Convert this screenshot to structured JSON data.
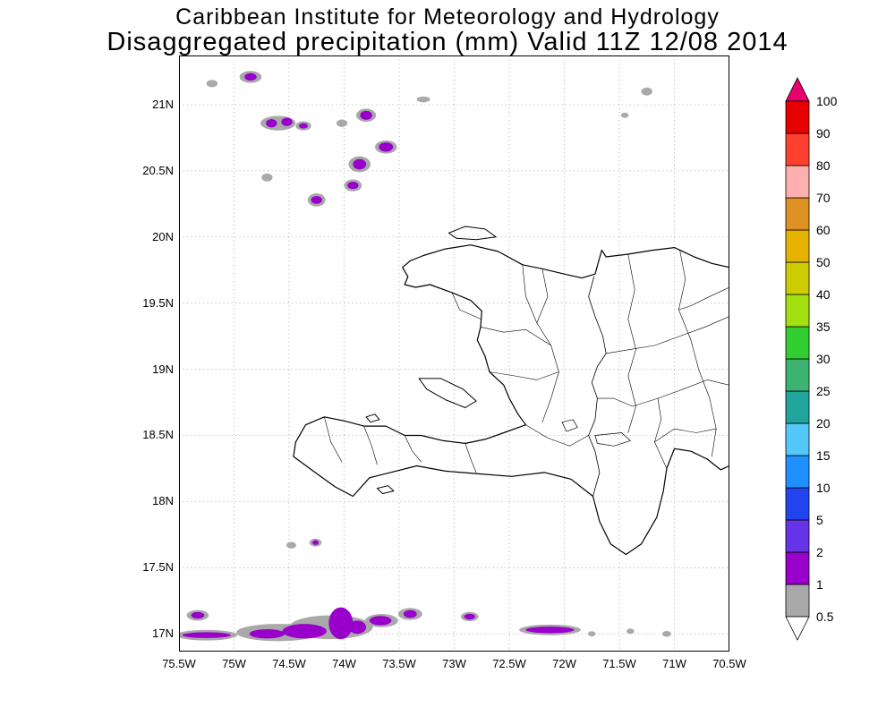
{
  "chart_data": {
    "type": "heatmap",
    "title": "Caribbean Institute for Meteorology and Hydrology",
    "subtitle": "Disaggregated precipitation (mm) Valid 11Z 12/08 2014",
    "x_axis": {
      "ticks": [
        "75.5W",
        "75W",
        "74.5W",
        "74W",
        "73.5W",
        "73W",
        "72.5W",
        "72W",
        "71.5W",
        "71W",
        "70.5W"
      ],
      "values": [
        -75.5,
        -75,
        -74.5,
        -74,
        -73.5,
        -73,
        -72.5,
        -72,
        -71.5,
        -71,
        -70.5
      ],
      "range": [
        -75.5,
        -70.5
      ]
    },
    "y_axis": {
      "ticks": [
        "21N",
        "20.5N",
        "20N",
        "19.5N",
        "19N",
        "18.5N",
        "18N",
        "17.5N",
        "17N"
      ],
      "values": [
        21,
        20.5,
        20,
        19.5,
        19,
        18.5,
        18,
        17.5,
        17
      ],
      "range": [
        16.866,
        21.372
      ]
    },
    "grid": true,
    "colorbar": {
      "unit": "mm",
      "levels": [
        0.5,
        1,
        2,
        5,
        10,
        15,
        20,
        25,
        30,
        35,
        40,
        50,
        60,
        70,
        80,
        90,
        100
      ],
      "range_colors": [
        "#A9A9A9",
        "#9900CC",
        "#6633E6",
        "#2244EE",
        "#1E90FF",
        "#55C8FA",
        "#20A49C",
        "#3CB371",
        "#32CD32",
        "#A2E010",
        "#CCCC00",
        "#E6B400",
        "#DF9023",
        "#FFAFAF",
        "#FF4030",
        "#E60000"
      ],
      "above_color": "#E8006E",
      "below_color": "#FFFFFF"
    },
    "precip": {
      "level_colors": {
        "0.5-1": "#A9A9A9",
        "1-2": "#9900CC"
      },
      "blobs_gray": [
        [
          -75.2,
          21.16,
          0.05,
          0.028
        ],
        [
          -74.85,
          21.21,
          0.1,
          0.045
        ],
        [
          -74.6,
          20.86,
          0.16,
          0.055
        ],
        [
          -74.37,
          20.84,
          0.07,
          0.035
        ],
        [
          -74.02,
          20.86,
          0.05,
          0.028
        ],
        [
          -73.8,
          20.92,
          0.09,
          0.05
        ],
        [
          -73.62,
          20.68,
          0.1,
          0.05
        ],
        [
          -73.86,
          20.55,
          0.1,
          0.06
        ],
        [
          -73.92,
          20.39,
          0.08,
          0.045
        ],
        [
          -74.25,
          20.28,
          0.08,
          0.05
        ],
        [
          -74.7,
          20.45,
          0.05,
          0.03
        ],
        [
          -73.28,
          21.04,
          0.06,
          0.022
        ],
        [
          -71.25,
          21.1,
          0.05,
          0.03
        ],
        [
          -71.45,
          20.92,
          0.035,
          0.02
        ],
        [
          -74.48,
          17.67,
          0.045,
          0.025
        ],
        [
          -74.26,
          17.69,
          0.055,
          0.03
        ],
        [
          -75.33,
          17.14,
          0.1,
          0.04
        ],
        [
          -75.25,
          16.99,
          0.28,
          0.04
        ],
        [
          -74.6,
          17.01,
          0.38,
          0.065
        ],
        [
          -74.12,
          17.05,
          0.38,
          0.09
        ],
        [
          -73.66,
          17.1,
          0.15,
          0.05
        ],
        [
          -73.4,
          17.15,
          0.11,
          0.045
        ],
        [
          -72.86,
          17.13,
          0.08,
          0.035
        ],
        [
          -72.13,
          17.03,
          0.28,
          0.04
        ],
        [
          -71.75,
          17.0,
          0.035,
          0.02
        ],
        [
          -71.4,
          17.02,
          0.035,
          0.02
        ],
        [
          -71.07,
          17.0,
          0.04,
          0.022
        ]
      ],
      "blobs_purple": [
        [
          -74.85,
          21.21,
          0.055,
          0.028
        ],
        [
          -74.66,
          20.86,
          0.05,
          0.032
        ],
        [
          -74.52,
          20.87,
          0.05,
          0.032
        ],
        [
          -74.37,
          20.84,
          0.04,
          0.02
        ],
        [
          -73.8,
          20.92,
          0.055,
          0.034
        ],
        [
          -73.62,
          20.68,
          0.065,
          0.035
        ],
        [
          -73.86,
          20.55,
          0.06,
          0.04
        ],
        [
          -73.92,
          20.39,
          0.05,
          0.028
        ],
        [
          -74.25,
          20.28,
          0.05,
          0.03
        ],
        [
          -74.26,
          17.69,
          0.028,
          0.018
        ],
        [
          -75.33,
          17.14,
          0.06,
          0.025
        ],
        [
          -75.25,
          16.99,
          0.22,
          0.022
        ],
        [
          -74.7,
          17.0,
          0.16,
          0.035
        ],
        [
          -74.36,
          17.02,
          0.2,
          0.055
        ],
        [
          -74.03,
          17.08,
          0.11,
          0.12
        ],
        [
          -73.88,
          17.05,
          0.08,
          0.05
        ],
        [
          -73.67,
          17.1,
          0.1,
          0.035
        ],
        [
          -73.4,
          17.15,
          0.06,
          0.03
        ],
        [
          -72.86,
          17.13,
          0.05,
          0.022
        ],
        [
          -72.13,
          17.03,
          0.22,
          0.025
        ]
      ]
    },
    "geo": {
      "mainland": [
        [
          -70.5,
          19.77
        ],
        [
          -70.66,
          19.8
        ],
        [
          -70.82,
          19.85
        ],
        [
          -71.0,
          19.92
        ],
        [
          -71.2,
          19.9
        ],
        [
          -71.42,
          19.87
        ],
        [
          -71.62,
          19.85
        ],
        [
          -71.66,
          19.9
        ],
        [
          -71.72,
          19.72
        ],
        [
          -71.84,
          19.69
        ],
        [
          -72.0,
          19.72
        ],
        [
          -72.2,
          19.76
        ],
        [
          -72.38,
          19.79
        ],
        [
          -72.6,
          19.89
        ],
        [
          -72.85,
          19.94
        ],
        [
          -73.08,
          19.91
        ],
        [
          -73.28,
          19.86
        ],
        [
          -73.4,
          19.82
        ],
        [
          -73.47,
          19.77
        ],
        [
          -73.42,
          19.7
        ],
        [
          -73.45,
          19.64
        ],
        [
          -73.35,
          19.62
        ],
        [
          -73.22,
          19.64
        ],
        [
          -73.02,
          19.58
        ],
        [
          -72.85,
          19.52
        ],
        [
          -72.75,
          19.44
        ],
        [
          -72.76,
          19.32
        ],
        [
          -72.79,
          19.22
        ],
        [
          -72.72,
          19.1
        ],
        [
          -72.68,
          18.98
        ],
        [
          -72.55,
          18.88
        ],
        [
          -72.5,
          18.78
        ],
        [
          -72.42,
          18.66
        ],
        [
          -72.35,
          18.58
        ],
        [
          -72.55,
          18.52
        ],
        [
          -72.72,
          18.47
        ],
        [
          -72.9,
          18.44
        ],
        [
          -73.1,
          18.46
        ],
        [
          -73.3,
          18.5
        ],
        [
          -73.45,
          18.5
        ],
        [
          -73.62,
          18.57
        ],
        [
          -73.82,
          18.57
        ],
        [
          -74.0,
          18.61
        ],
        [
          -74.18,
          18.64
        ],
        [
          -74.35,
          18.58
        ],
        [
          -74.44,
          18.45
        ],
        [
          -74.46,
          18.34
        ],
        [
          -74.28,
          18.23
        ],
        [
          -74.08,
          18.11
        ],
        [
          -73.92,
          18.04
        ],
        [
          -73.77,
          18.18
        ],
        [
          -73.58,
          18.22
        ],
        [
          -73.34,
          18.27
        ],
        [
          -73.08,
          18.23
        ],
        [
          -72.78,
          18.21
        ],
        [
          -72.48,
          18.19
        ],
        [
          -72.18,
          18.22
        ],
        [
          -71.94,
          18.17
        ],
        [
          -71.74,
          18.04
        ],
        [
          -71.68,
          17.85
        ],
        [
          -71.58,
          17.68
        ],
        [
          -71.44,
          17.6
        ],
        [
          -71.3,
          17.68
        ],
        [
          -71.16,
          17.88
        ],
        [
          -71.1,
          18.08
        ],
        [
          -71.07,
          18.25
        ],
        [
          -71.0,
          18.4
        ],
        [
          -70.85,
          18.38
        ],
        [
          -70.7,
          18.32
        ],
        [
          -70.58,
          18.24
        ],
        [
          -70.5,
          18.27
        ]
      ],
      "islands": [
        [
          [
            -73.05,
            20.03
          ],
          [
            -72.9,
            20.08
          ],
          [
            -72.72,
            20.06
          ],
          [
            -72.62,
            20.0
          ],
          [
            -72.8,
            19.98
          ],
          [
            -72.98,
            19.99
          ]
        ],
        [
          [
            -73.32,
            18.93
          ],
          [
            -73.12,
            18.93
          ],
          [
            -72.92,
            18.85
          ],
          [
            -72.8,
            18.76
          ],
          [
            -72.9,
            18.71
          ],
          [
            -73.08,
            18.77
          ],
          [
            -73.25,
            18.85
          ]
        ],
        [
          [
            -73.8,
            18.64
          ],
          [
            -73.72,
            18.66
          ],
          [
            -73.68,
            18.62
          ],
          [
            -73.76,
            18.6
          ]
        ],
        [
          [
            -73.7,
            18.1
          ],
          [
            -73.6,
            18.12
          ],
          [
            -73.55,
            18.08
          ],
          [
            -73.65,
            18.06
          ]
        ]
      ],
      "lakes": [
        [
          [
            -71.72,
            18.5
          ],
          [
            -71.48,
            18.52
          ],
          [
            -71.4,
            18.46
          ],
          [
            -71.55,
            18.42
          ],
          [
            -71.7,
            18.44
          ]
        ],
        [
          [
            -72.02,
            18.6
          ],
          [
            -71.92,
            18.62
          ],
          [
            -71.88,
            18.56
          ],
          [
            -71.98,
            18.53
          ]
        ]
      ],
      "border": [
        [
          -71.73,
          19.7
        ],
        [
          -71.78,
          19.55
        ],
        [
          -71.72,
          19.4
        ],
        [
          -71.65,
          19.25
        ],
        [
          -71.62,
          19.12
        ],
        [
          -71.7,
          19.02
        ],
        [
          -71.75,
          18.9
        ],
        [
          -71.7,
          18.78
        ],
        [
          -71.72,
          18.62
        ],
        [
          -71.78,
          18.5
        ],
        [
          -71.72,
          18.38
        ],
        [
          -71.68,
          18.22
        ],
        [
          -71.74,
          18.04
        ]
      ],
      "interior": [
        [
          [
            -70.95,
            19.9
          ],
          [
            -70.9,
            19.68
          ],
          [
            -70.96,
            19.45
          ],
          [
            -70.85,
            19.22
          ],
          [
            -70.78,
            19.0
          ],
          [
            -70.68,
            18.78
          ],
          [
            -70.62,
            18.55
          ],
          [
            -70.66,
            18.34
          ]
        ],
        [
          [
            -71.42,
            19.87
          ],
          [
            -71.36,
            19.6
          ],
          [
            -71.42,
            19.38
          ],
          [
            -71.35,
            19.15
          ],
          [
            -71.42,
            18.95
          ],
          [
            -71.35,
            18.72
          ],
          [
            -71.42,
            18.52
          ]
        ],
        [
          [
            -70.5,
            19.4
          ],
          [
            -70.72,
            19.32
          ],
          [
            -70.95,
            19.25
          ],
          [
            -71.18,
            19.18
          ],
          [
            -71.4,
            19.15
          ],
          [
            -71.62,
            19.12
          ]
        ],
        [
          [
            -70.5,
            18.88
          ],
          [
            -70.7,
            18.92
          ],
          [
            -70.92,
            18.85
          ],
          [
            -71.15,
            18.78
          ],
          [
            -71.38,
            18.72
          ],
          [
            -71.55,
            18.78
          ],
          [
            -71.7,
            18.78
          ]
        ],
        [
          [
            -71.07,
            18.25
          ],
          [
            -71.18,
            18.45
          ],
          [
            -71.12,
            18.62
          ],
          [
            -71.15,
            18.78
          ]
        ],
        [
          [
            -70.5,
            19.62
          ],
          [
            -70.68,
            19.55
          ],
          [
            -70.85,
            19.48
          ],
          [
            -70.96,
            19.45
          ]
        ],
        [
          [
            -70.62,
            18.55
          ],
          [
            -70.8,
            18.52
          ],
          [
            -71.0,
            18.55
          ],
          [
            -71.18,
            18.45
          ]
        ],
        [
          [
            -72.38,
            19.79
          ],
          [
            -72.35,
            19.55
          ],
          [
            -72.25,
            19.35
          ],
          [
            -72.12,
            19.18
          ],
          [
            -72.05,
            18.98
          ],
          [
            -72.12,
            18.78
          ],
          [
            -72.2,
            18.6
          ]
        ],
        [
          [
            -72.76,
            19.32
          ],
          [
            -72.55,
            19.28
          ],
          [
            -72.35,
            19.3
          ],
          [
            -72.12,
            19.18
          ]
        ],
        [
          [
            -72.68,
            18.98
          ],
          [
            -72.45,
            18.95
          ],
          [
            -72.25,
            18.92
          ],
          [
            -72.05,
            18.98
          ]
        ],
        [
          [
            -72.35,
            18.58
          ],
          [
            -72.15,
            18.48
          ],
          [
            -71.95,
            18.42
          ],
          [
            -71.78,
            18.5
          ]
        ],
        [
          [
            -74.18,
            18.64
          ],
          [
            -74.12,
            18.45
          ],
          [
            -74.02,
            18.3
          ]
        ],
        [
          [
            -73.82,
            18.57
          ],
          [
            -73.75,
            18.42
          ],
          [
            -73.7,
            18.28
          ]
        ],
        [
          [
            -73.45,
            18.5
          ],
          [
            -73.38,
            18.38
          ],
          [
            -73.3,
            18.3
          ]
        ],
        [
          [
            -72.9,
            18.44
          ],
          [
            -72.85,
            18.32
          ],
          [
            -72.8,
            18.22
          ]
        ],
        [
          [
            -73.02,
            19.58
          ],
          [
            -72.95,
            19.45
          ],
          [
            -72.76,
            19.38
          ]
        ],
        [
          [
            -72.2,
            19.76
          ],
          [
            -72.15,
            19.55
          ],
          [
            -72.25,
            19.35
          ]
        ]
      ]
    }
  }
}
